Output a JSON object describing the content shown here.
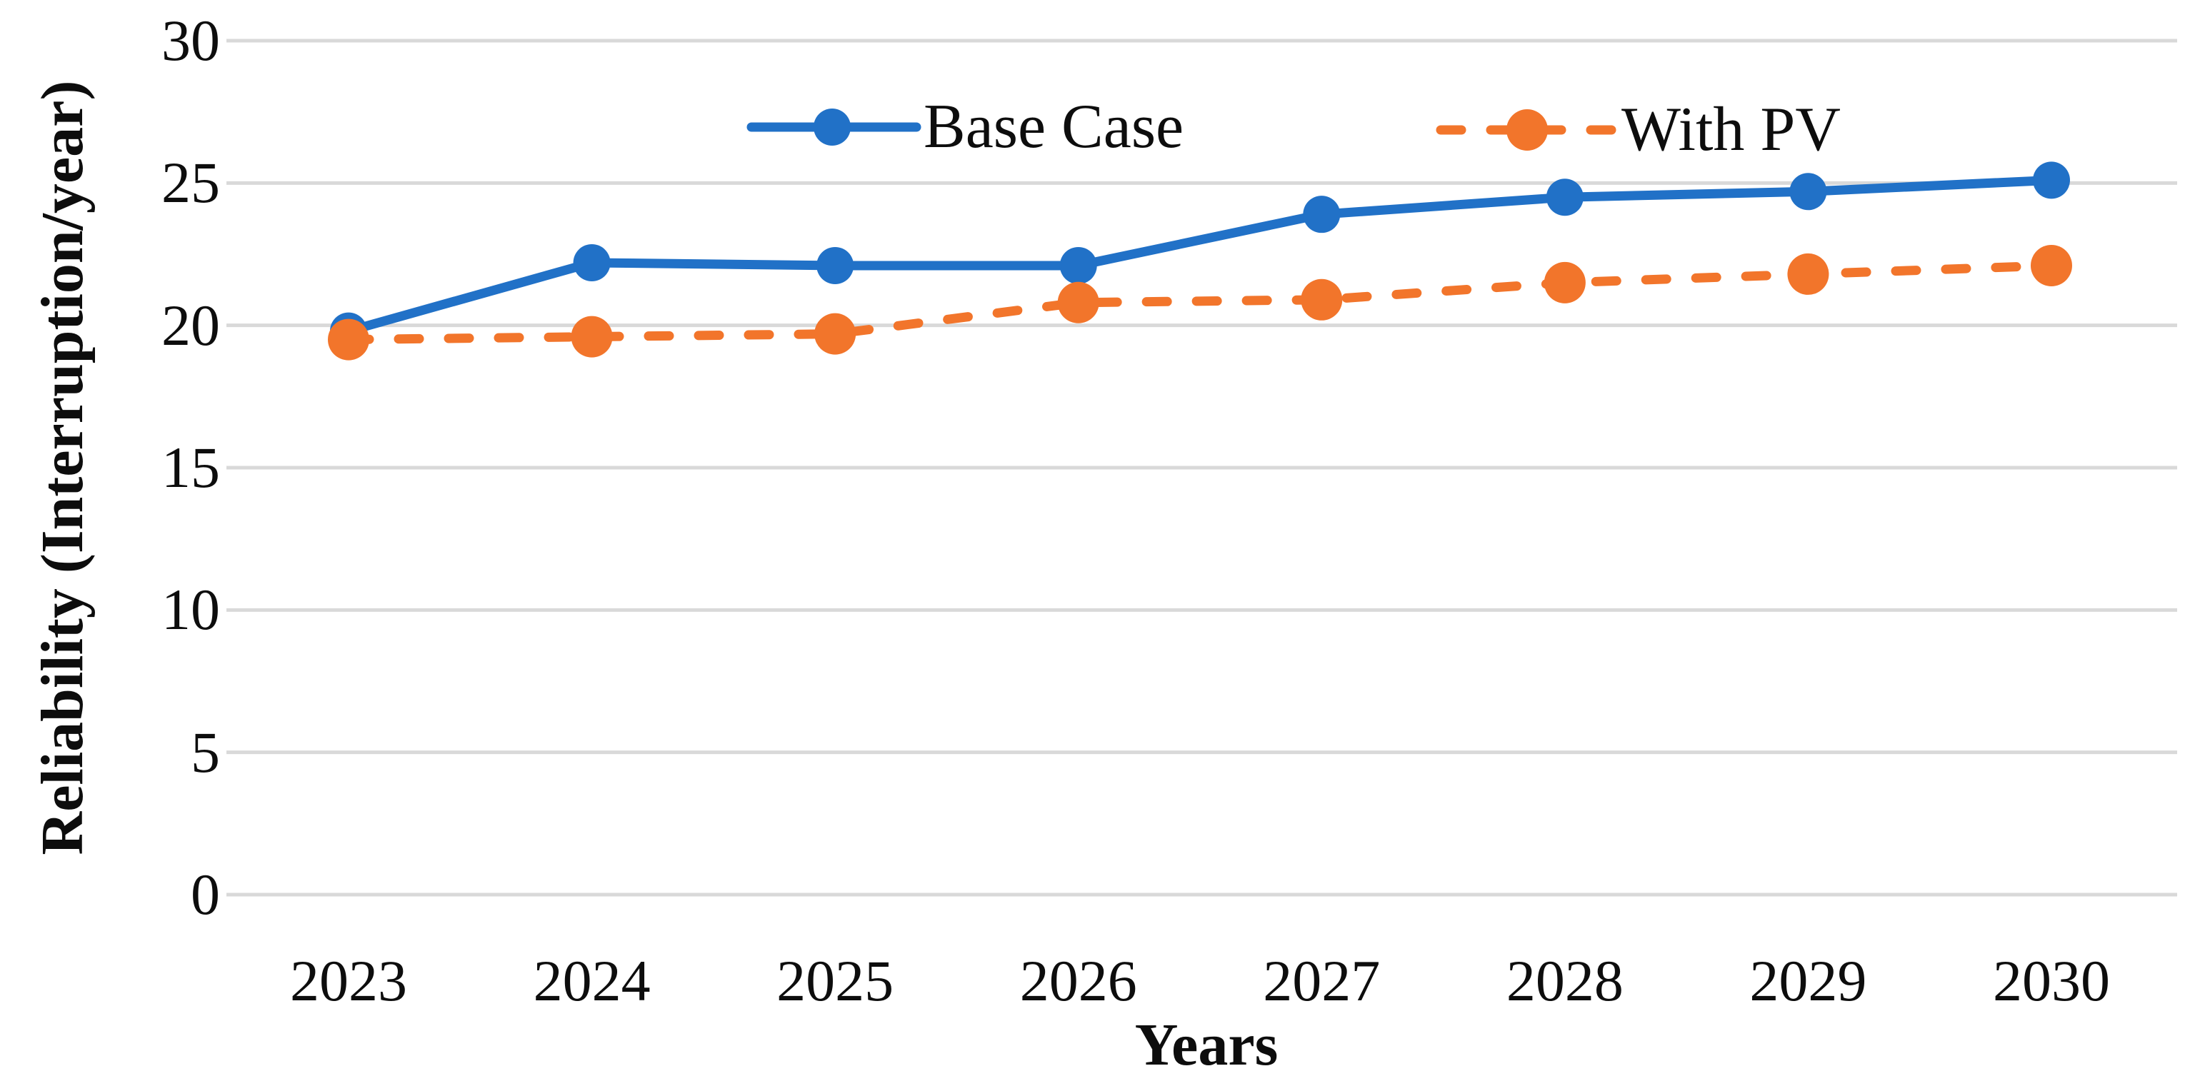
{
  "chart_data": {
    "type": "line",
    "title": "",
    "xlabel": "Years",
    "ylabel": "Reliability (Interruption/year)",
    "x_categories": [
      "2023",
      "2024",
      "2025",
      "2026",
      "2027",
      "2028",
      "2029",
      "2030"
    ],
    "y_ticks": [
      30,
      25,
      20,
      15,
      10,
      5,
      0
    ],
    "ylim": [
      0,
      30
    ],
    "grid": "horizontal",
    "legend_position": "top-center",
    "series": [
      {
        "name": "Base Case",
        "color": "#2171C7",
        "line_style": "solid",
        "marker": "circle",
        "values": [
          19.8,
          22.2,
          22.1,
          22.1,
          23.9,
          24.5,
          24.7,
          25.1
        ]
      },
      {
        "name": "With PV",
        "color": "#F2752B",
        "line_style": "dashed",
        "marker": "circle",
        "values": [
          19.5,
          19.6,
          19.7,
          20.8,
          20.9,
          21.5,
          21.8,
          22.1
        ]
      }
    ]
  },
  "colors": {
    "gridline": "#D9D9D9",
    "text": "#0D0D0D",
    "background": "#FFFFFF"
  }
}
